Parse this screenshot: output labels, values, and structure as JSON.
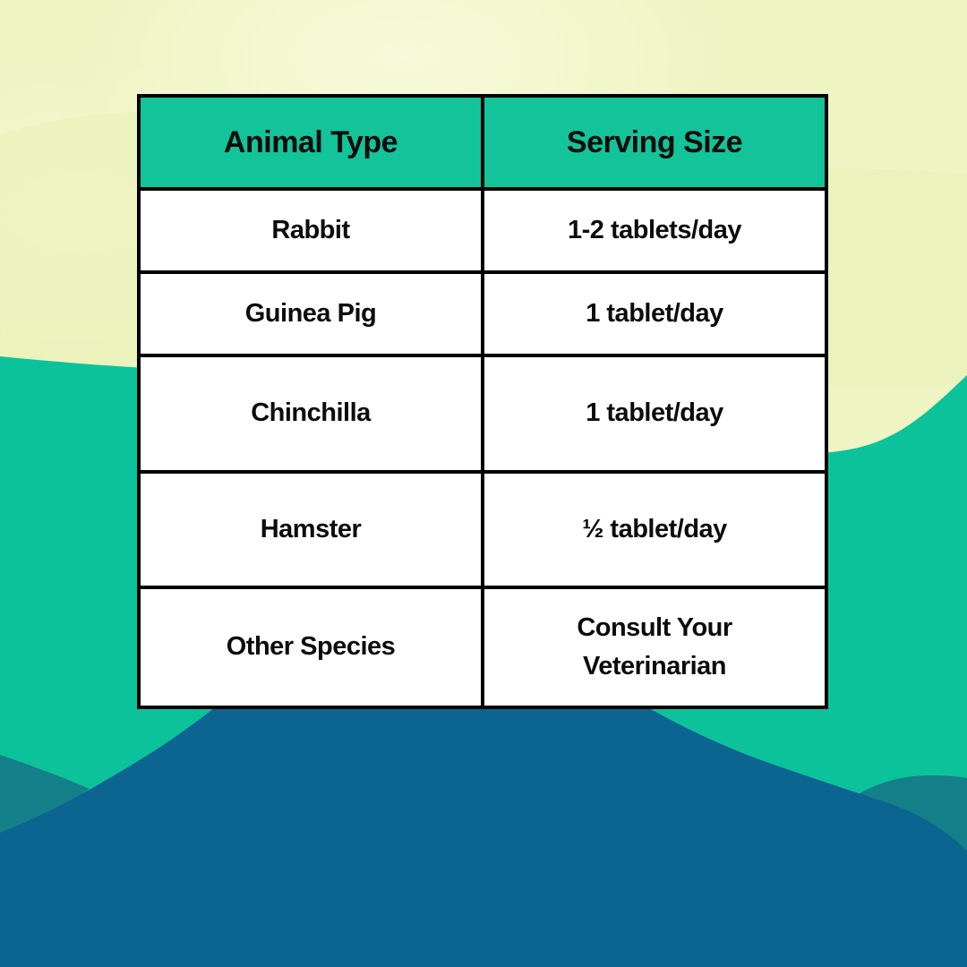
{
  "colors": {
    "bg_pale_yellow": "#EFF4C3",
    "bg_pale_yellow_shade": "#EAF0B6",
    "bg_green": "#0CC29B",
    "bg_teal_dark": "#13808A",
    "bg_blue": "#0C6591",
    "header_bg": "#13C399",
    "cell_bg": "#FFFFFF",
    "border": "#000000",
    "text": "#0C0C0C"
  },
  "table": {
    "headers": [
      "Animal Type",
      "Serving Size"
    ],
    "rows": [
      [
        "Rabbit",
        "1-2 tablets/day"
      ],
      [
        "Guinea Pig",
        "1 tablet/day"
      ],
      [
        "Chinchilla",
        "1 tablet/day"
      ],
      [
        "Hamster",
        "½ tablet/day"
      ],
      [
        "Other Species",
        "Consult Your Veterinarian"
      ]
    ]
  },
  "chart_data": {
    "type": "table",
    "title": "",
    "columns": [
      "Animal Type",
      "Serving Size"
    ],
    "rows": [
      {
        "animal_type": "Rabbit",
        "serving_size": "1-2 tablets/day"
      },
      {
        "animal_type": "Guinea Pig",
        "serving_size": "1 tablet/day"
      },
      {
        "animal_type": "Chinchilla",
        "serving_size": "1 tablet/day"
      },
      {
        "animal_type": "Hamster",
        "serving_size": "½ tablet/day"
      },
      {
        "animal_type": "Other Species",
        "serving_size": "Consult Your Veterinarian"
      }
    ],
    "layout_hints": {
      "header_fill": "#13C399",
      "body_fill": "#FFFFFF",
      "grid": true,
      "background": "layered wavy hills: pale yellow top, teal middle, dark blue bottom"
    }
  }
}
